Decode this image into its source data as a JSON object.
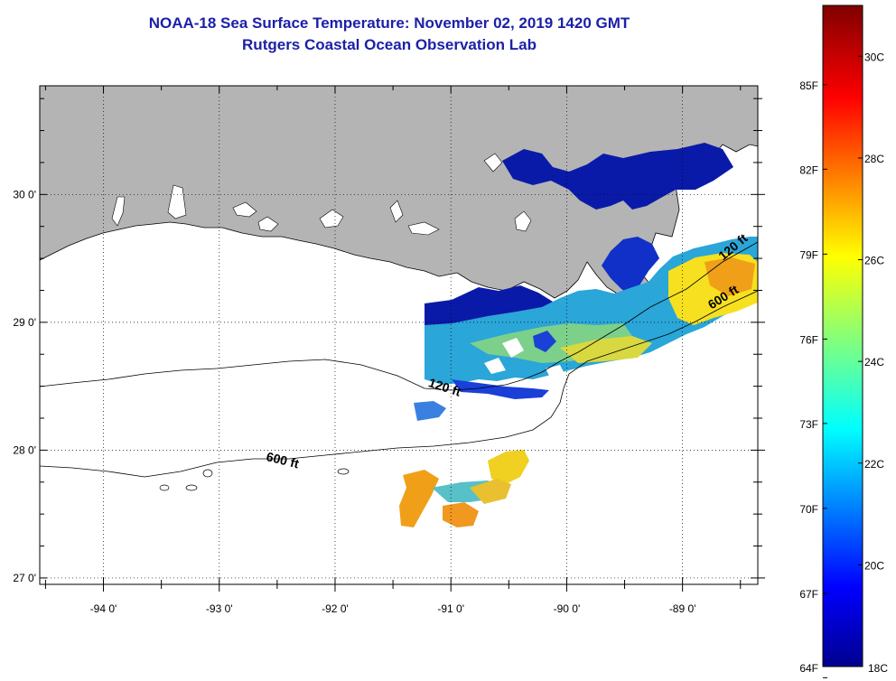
{
  "title": {
    "line1": "NOAA-18 Sea Surface Temperature:  November 02, 2019 1420 GMT",
    "line2": "Rutgers Coastal Ocean Observation Lab"
  },
  "map": {
    "lon_range": [
      -94.55,
      -88.35
    ],
    "lat_range": [
      26.95,
      30.85
    ],
    "x_ticks": [
      {
        "value": -94,
        "label": "-94 0'"
      },
      {
        "value": -93,
        "label": "-93 0'"
      },
      {
        "value": -92,
        "label": "-92 0'"
      },
      {
        "value": -91,
        "label": "-91 0'"
      },
      {
        "value": -90,
        "label": "-90 0'"
      },
      {
        "value": -89,
        "label": "-89 0'"
      }
    ],
    "y_ticks": [
      {
        "value": 30,
        "label": "30 0'"
      },
      {
        "value": 29,
        "label": "29 0'"
      },
      {
        "value": 28,
        "label": "28 0'"
      },
      {
        "value": 27,
        "label": "27 0'"
      }
    ],
    "contour_labels": [
      {
        "text": "120 ft",
        "lon": -91.2,
        "lat": 28.5
      },
      {
        "text": "600 ft",
        "lon": -92.6,
        "lat": 27.92
      },
      {
        "text": "120 ft",
        "lon": -88.65,
        "lat": 29.48
      },
      {
        "text": "600 ft",
        "lon": -88.75,
        "lat": 29.1
      }
    ],
    "land_color": "#b4b4b4",
    "grid": "dotted"
  },
  "colorbar": {
    "min_c": 18,
    "max_c": 31,
    "celsius_labels": [
      {
        "value": 18,
        "label": "18C"
      },
      {
        "value": 20,
        "label": "20C"
      },
      {
        "value": 22,
        "label": "22C"
      },
      {
        "value": 24,
        "label": "24C"
      },
      {
        "value": 26,
        "label": "26C"
      },
      {
        "value": 28,
        "label": "28C"
      },
      {
        "value": 30,
        "label": "30C"
      }
    ],
    "fahrenheit_labels": [
      {
        "value": 17.78,
        "label": "64F"
      },
      {
        "value": 19.44,
        "label": "67F"
      },
      {
        "value": 21.11,
        "label": "70F"
      },
      {
        "value": 22.78,
        "label": "73F"
      },
      {
        "value": 24.44,
        "label": "76F"
      },
      {
        "value": 26.11,
        "label": "79F"
      },
      {
        "value": 27.78,
        "label": "82F"
      },
      {
        "value": 29.44,
        "label": "85F"
      }
    ]
  }
}
